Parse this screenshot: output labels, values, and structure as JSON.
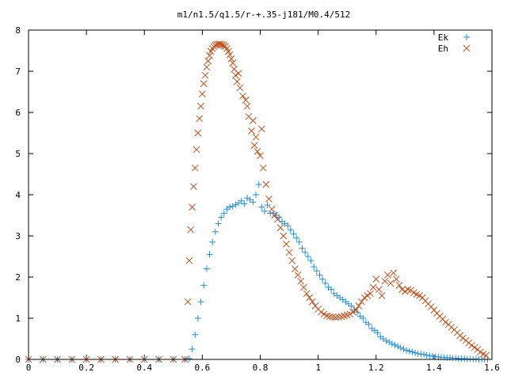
{
  "chart_data": {
    "type": "scatter",
    "title": "m1/n1.5/q1.5/r-+.35-j181/M0.4/512",
    "xlabel": "",
    "ylabel": "",
    "xlim": [
      0,
      1.6
    ],
    "ylim": [
      0,
      8
    ],
    "x_ticks": [
      "0",
      "0.2",
      "0.4",
      "0.6",
      "0.8",
      "1",
      "1.2",
      "1.4",
      "1.6"
    ],
    "y_ticks": [
      "0",
      "1",
      "2",
      "3",
      "4",
      "5",
      "6",
      "7",
      "8"
    ],
    "legend_position": "top-right",
    "grid": false,
    "series": [
      {
        "name": "Ek",
        "marker": "plus",
        "color": "#1f8ee0",
        "points": [
          [
            0.0,
            0.0
          ],
          [
            0.05,
            0.0
          ],
          [
            0.1,
            0.0
          ],
          [
            0.15,
            0.0
          ],
          [
            0.2,
            0.0
          ],
          [
            0.25,
            0.0
          ],
          [
            0.3,
            0.0
          ],
          [
            0.35,
            0.0
          ],
          [
            0.4,
            0.0
          ],
          [
            0.45,
            0.0
          ],
          [
            0.5,
            0.0
          ],
          [
            0.54,
            0.0
          ],
          [
            0.555,
            0.02
          ],
          [
            0.565,
            0.25
          ],
          [
            0.575,
            0.6
          ],
          [
            0.585,
            1.0
          ],
          [
            0.595,
            1.4
          ],
          [
            0.605,
            1.8
          ],
          [
            0.615,
            2.2
          ],
          [
            0.625,
            2.55
          ],
          [
            0.635,
            2.85
          ],
          [
            0.645,
            3.1
          ],
          [
            0.655,
            3.3
          ],
          [
            0.665,
            3.45
          ],
          [
            0.675,
            3.55
          ],
          [
            0.685,
            3.65
          ],
          [
            0.695,
            3.7
          ],
          [
            0.705,
            3.72
          ],
          [
            0.715,
            3.76
          ],
          [
            0.725,
            3.8
          ],
          [
            0.735,
            3.85
          ],
          [
            0.745,
            3.78
          ],
          [
            0.755,
            3.92
          ],
          [
            0.765,
            3.88
          ],
          [
            0.775,
            3.82
          ],
          [
            0.785,
            4.0
          ],
          [
            0.795,
            4.25
          ],
          [
            0.805,
            3.7
          ],
          [
            0.815,
            3.6
          ],
          [
            0.825,
            3.75
          ],
          [
            0.835,
            3.55
          ],
          [
            0.845,
            3.55
          ],
          [
            0.855,
            3.5
          ],
          [
            0.865,
            3.45
          ],
          [
            0.875,
            3.35
          ],
          [
            0.885,
            3.3
          ],
          [
            0.895,
            3.25
          ],
          [
            0.905,
            3.15
          ],
          [
            0.915,
            3.05
          ],
          [
            0.925,
            2.95
          ],
          [
            0.935,
            2.85
          ],
          [
            0.945,
            2.7
          ],
          [
            0.955,
            2.6
          ],
          [
            0.965,
            2.5
          ],
          [
            0.975,
            2.4
          ],
          [
            0.985,
            2.25
          ],
          [
            0.995,
            2.15
          ],
          [
            1.005,
            2.05
          ],
          [
            1.015,
            1.95
          ],
          [
            1.025,
            1.85
          ],
          [
            1.035,
            1.75
          ],
          [
            1.045,
            1.7
          ],
          [
            1.055,
            1.6
          ],
          [
            1.065,
            1.55
          ],
          [
            1.075,
            1.5
          ],
          [
            1.085,
            1.45
          ],
          [
            1.095,
            1.4
          ],
          [
            1.105,
            1.35
          ],
          [
            1.115,
            1.3
          ],
          [
            1.125,
            1.2
          ],
          [
            1.135,
            1.15
          ],
          [
            1.145,
            1.05
          ],
          [
            1.155,
            1.0
          ],
          [
            1.165,
            0.9
          ],
          [
            1.175,
            0.85
          ],
          [
            1.185,
            0.75
          ],
          [
            1.195,
            0.7
          ],
          [
            1.205,
            0.65
          ],
          [
            1.215,
            0.55
          ],
          [
            1.225,
            0.5
          ],
          [
            1.235,
            0.45
          ],
          [
            1.245,
            0.42
          ],
          [
            1.255,
            0.38
          ],
          [
            1.265,
            0.35
          ],
          [
            1.275,
            0.32
          ],
          [
            1.285,
            0.28
          ],
          [
            1.295,
            0.25
          ],
          [
            1.305,
            0.22
          ],
          [
            1.315,
            0.2
          ],
          [
            1.325,
            0.18
          ],
          [
            1.335,
            0.16
          ],
          [
            1.345,
            0.14
          ],
          [
            1.355,
            0.13
          ],
          [
            1.365,
            0.12
          ],
          [
            1.375,
            0.1
          ],
          [
            1.385,
            0.09
          ],
          [
            1.395,
            0.08
          ],
          [
            1.405,
            0.07
          ],
          [
            1.415,
            0.06
          ],
          [
            1.425,
            0.05
          ],
          [
            1.435,
            0.05
          ],
          [
            1.445,
            0.04
          ],
          [
            1.455,
            0.04
          ],
          [
            1.465,
            0.03
          ],
          [
            1.475,
            0.03
          ],
          [
            1.485,
            0.02
          ],
          [
            1.495,
            0.02
          ],
          [
            1.505,
            0.02
          ],
          [
            1.515,
            0.01
          ],
          [
            1.525,
            0.01
          ],
          [
            1.535,
            0.01
          ],
          [
            1.545,
            0.01
          ],
          [
            1.555,
            0.0
          ],
          [
            1.565,
            0.0
          ],
          [
            1.575,
            0.0
          ],
          [
            1.585,
            0.0
          ]
        ]
      },
      {
        "name": "Eh",
        "marker": "cross",
        "color": "#c0501a",
        "points": [
          [
            0.0,
            0.0
          ],
          [
            0.05,
            0.0
          ],
          [
            0.1,
            0.0
          ],
          [
            0.15,
            0.0
          ],
          [
            0.2,
            0.0
          ],
          [
            0.25,
            0.0
          ],
          [
            0.3,
            0.0
          ],
          [
            0.35,
            0.0
          ],
          [
            0.4,
            0.0
          ],
          [
            0.45,
            0.0
          ],
          [
            0.5,
            0.0
          ],
          [
            0.54,
            0.0
          ],
          [
            0.55,
            1.4
          ],
          [
            0.555,
            2.4
          ],
          [
            0.56,
            3.15
          ],
          [
            0.565,
            3.7
          ],
          [
            0.57,
            4.2
          ],
          [
            0.575,
            4.65
          ],
          [
            0.58,
            5.1
          ],
          [
            0.585,
            5.5
          ],
          [
            0.59,
            5.85
          ],
          [
            0.595,
            6.15
          ],
          [
            0.6,
            6.45
          ],
          [
            0.605,
            6.7
          ],
          [
            0.61,
            6.9
          ],
          [
            0.615,
            7.1
          ],
          [
            0.62,
            7.25
          ],
          [
            0.625,
            7.38
          ],
          [
            0.63,
            7.48
          ],
          [
            0.635,
            7.55
          ],
          [
            0.64,
            7.6
          ],
          [
            0.645,
            7.63
          ],
          [
            0.65,
            7.65
          ],
          [
            0.655,
            7.66
          ],
          [
            0.66,
            7.66
          ],
          [
            0.665,
            7.65
          ],
          [
            0.67,
            7.64
          ],
          [
            0.675,
            7.62
          ],
          [
            0.68,
            7.6
          ],
          [
            0.685,
            7.55
          ],
          [
            0.69,
            7.48
          ],
          [
            0.695,
            7.4
          ],
          [
            0.7,
            7.3
          ],
          [
            0.705,
            7.2
          ],
          [
            0.71,
            7.05
          ],
          [
            0.715,
            6.9
          ],
          [
            0.72,
            6.75
          ],
          [
            0.725,
            6.95
          ],
          [
            0.73,
            6.6
          ],
          [
            0.74,
            6.4
          ],
          [
            0.75,
            6.3
          ],
          [
            0.755,
            6.15
          ],
          [
            0.76,
            5.9
          ],
          [
            0.77,
            5.55
          ],
          [
            0.775,
            5.8
          ],
          [
            0.78,
            5.2
          ],
          [
            0.785,
            5.4
          ],
          [
            0.79,
            5.05
          ],
          [
            0.8,
            4.95
          ],
          [
            0.805,
            5.6
          ],
          [
            0.81,
            4.65
          ],
          [
            0.82,
            4.25
          ],
          [
            0.83,
            3.9
          ],
          [
            0.84,
            3.65
          ],
          [
            0.85,
            3.5
          ],
          [
            0.86,
            3.4
          ],
          [
            0.87,
            3.2
          ],
          [
            0.88,
            3.0
          ],
          [
            0.89,
            2.8
          ],
          [
            0.9,
            2.6
          ],
          [
            0.91,
            2.4
          ],
          [
            0.92,
            2.2
          ],
          [
            0.93,
            2.05
          ],
          [
            0.94,
            1.9
          ],
          [
            0.95,
            1.75
          ],
          [
            0.96,
            1.6
          ],
          [
            0.97,
            1.5
          ],
          [
            0.98,
            1.4
          ],
          [
            0.99,
            1.3
          ],
          [
            1.0,
            1.22
          ],
          [
            1.01,
            1.15
          ],
          [
            1.02,
            1.1
          ],
          [
            1.03,
            1.06
          ],
          [
            1.04,
            1.04
          ],
          [
            1.05,
            1.03
          ],
          [
            1.06,
            1.02
          ],
          [
            1.07,
            1.03
          ],
          [
            1.08,
            1.04
          ],
          [
            1.09,
            1.06
          ],
          [
            1.1,
            1.08
          ],
          [
            1.11,
            1.1
          ],
          [
            1.12,
            1.15
          ],
          [
            1.13,
            1.2
          ],
          [
            1.14,
            1.3
          ],
          [
            1.15,
            1.4
          ],
          [
            1.16,
            1.5
          ],
          [
            1.17,
            1.55
          ],
          [
            1.18,
            1.6
          ],
          [
            1.19,
            1.75
          ],
          [
            1.2,
            1.95
          ],
          [
            1.21,
            1.7
          ],
          [
            1.22,
            1.55
          ],
          [
            1.23,
            1.9
          ],
          [
            1.24,
            2.05
          ],
          [
            1.25,
            1.85
          ],
          [
            1.26,
            2.1
          ],
          [
            1.27,
            1.95
          ],
          [
            1.28,
            1.8
          ],
          [
            1.29,
            1.7
          ],
          [
            1.3,
            1.65
          ],
          [
            1.31,
            1.7
          ],
          [
            1.32,
            1.68
          ],
          [
            1.33,
            1.62
          ],
          [
            1.34,
            1.58
          ],
          [
            1.35,
            1.55
          ],
          [
            1.36,
            1.5
          ],
          [
            1.37,
            1.42
          ],
          [
            1.38,
            1.35
          ],
          [
            1.39,
            1.28
          ],
          [
            1.4,
            1.2
          ],
          [
            1.41,
            1.12
          ],
          [
            1.42,
            1.05
          ],
          [
            1.43,
            0.98
          ],
          [
            1.44,
            0.9
          ],
          [
            1.45,
            0.85
          ],
          [
            1.46,
            0.78
          ],
          [
            1.47,
            0.72
          ],
          [
            1.48,
            0.65
          ],
          [
            1.49,
            0.58
          ],
          [
            1.5,
            0.52
          ],
          [
            1.51,
            0.46
          ],
          [
            1.52,
            0.4
          ],
          [
            1.53,
            0.34
          ],
          [
            1.54,
            0.29
          ],
          [
            1.55,
            0.24
          ],
          [
            1.56,
            0.18
          ],
          [
            1.57,
            0.13
          ],
          [
            1.58,
            0.1
          ]
        ]
      }
    ]
  }
}
